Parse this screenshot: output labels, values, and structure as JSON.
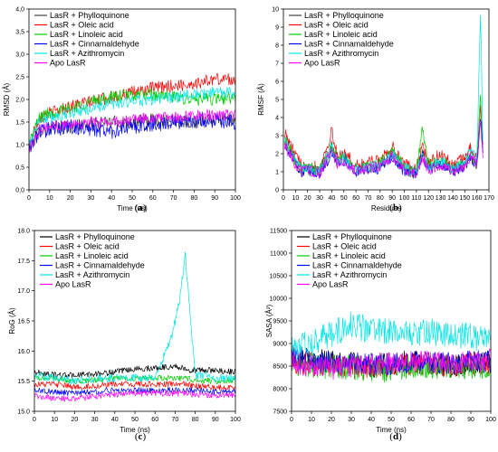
{
  "chart_data": [
    {
      "type": "line",
      "panel": "(a)",
      "panel_letter": "a",
      "xlabel": "Time (ns)",
      "ylabel": "RMSD (Å)",
      "xlim": [
        0,
        100
      ],
      "ylim": [
        0.0,
        4.0
      ],
      "xticks": [
        0,
        10,
        20,
        30,
        40,
        50,
        60,
        70,
        80,
        90,
        100
      ],
      "yticks": [
        0.0,
        0.5,
        1.0,
        1.5,
        2.0,
        2.5,
        3.0,
        3.5,
        4.0
      ],
      "ytick_labels": [
        "0,0",
        "0,5",
        "1,0",
        "1,5",
        "2,0",
        "2,5",
        "3,0",
        "3,5",
        "4,0"
      ],
      "legend_position": "top-left",
      "series": [
        {
          "name": "LasR + Phylloquinone",
          "color": "#444444",
          "x": [
            0,
            5,
            10,
            20,
            30,
            40,
            50,
            60,
            70,
            80,
            90,
            100
          ],
          "values": [
            0.9,
            1.3,
            1.35,
            1.4,
            1.45,
            1.5,
            1.5,
            1.55,
            1.55,
            1.5,
            1.55,
            1.55
          ],
          "noise": 0.15
        },
        {
          "name": "LasR + Oleic acid",
          "color": "#ff0000",
          "x": [
            0,
            5,
            10,
            20,
            30,
            40,
            50,
            60,
            70,
            80,
            90,
            100
          ],
          "values": [
            1.0,
            1.6,
            1.7,
            1.85,
            1.95,
            2.05,
            2.15,
            2.25,
            2.3,
            2.35,
            2.45,
            2.45
          ],
          "noise": 0.14
        },
        {
          "name": "LasR + Linoleic acid",
          "color": "#00cc00",
          "x": [
            0,
            5,
            10,
            20,
            30,
            40,
            50,
            60,
            70,
            80,
            90,
            100
          ],
          "values": [
            1.0,
            1.6,
            1.7,
            1.8,
            1.95,
            2.05,
            2.1,
            2.1,
            2.05,
            2.0,
            2.0,
            2.05
          ],
          "noise": 0.14
        },
        {
          "name": "LasR + Cinnamaldehyde",
          "color": "#0000ff",
          "x": [
            0,
            5,
            10,
            20,
            30,
            40,
            50,
            60,
            70,
            80,
            90,
            100
          ],
          "values": [
            0.9,
            1.3,
            1.35,
            1.4,
            1.35,
            1.3,
            1.4,
            1.45,
            1.5,
            1.55,
            1.55,
            1.5
          ],
          "noise": 0.18
        },
        {
          "name": "LasR + Azithromycin",
          "color": "#00e5e5",
          "x": [
            0,
            5,
            10,
            20,
            30,
            40,
            50,
            60,
            70,
            80,
            90,
            100
          ],
          "values": [
            1.0,
            1.55,
            1.6,
            1.7,
            1.8,
            1.9,
            1.95,
            2.0,
            2.05,
            2.1,
            2.15,
            2.15
          ],
          "noise": 0.13
        },
        {
          "name": "Apo LasR",
          "color": "#ff00ff",
          "x": [
            0,
            5,
            10,
            20,
            30,
            40,
            50,
            60,
            70,
            80,
            90,
            100
          ],
          "values": [
            0.9,
            1.35,
            1.4,
            1.45,
            1.5,
            1.5,
            1.55,
            1.6,
            1.6,
            1.65,
            1.65,
            1.65
          ],
          "noise": 0.12
        }
      ]
    },
    {
      "type": "line",
      "panel": "(b)",
      "panel_letter": "b",
      "xlabel": "Residues",
      "ylabel": "RMSF (Å)",
      "xlim": [
        0,
        170
      ],
      "ylim": [
        0,
        10
      ],
      "xticks": [
        0,
        10,
        20,
        30,
        40,
        50,
        60,
        70,
        80,
        90,
        100,
        110,
        120,
        130,
        140,
        150,
        160,
        170
      ],
      "yticks": [
        0,
        1,
        2,
        3,
        4,
        5,
        6,
        7,
        8,
        9,
        10
      ],
      "ytick_labels": [
        "0",
        "1",
        "2",
        "3",
        "4",
        "5",
        "6",
        "7",
        "8",
        "9",
        "10"
      ],
      "legend_position": "top-left",
      "series": [
        {
          "name": "LasR + Phylloquinone",
          "color": "#444444",
          "x": [
            1,
            5,
            10,
            15,
            20,
            30,
            40,
            45,
            50,
            60,
            70,
            80,
            90,
            100,
            110,
            115,
            120,
            130,
            140,
            150,
            155,
            160,
            163,
            165
          ],
          "values": [
            3.0,
            2.4,
            1.6,
            1.1,
            1.2,
            1.0,
            2.6,
            1.6,
            1.9,
            1.1,
            1.2,
            1.4,
            2.0,
            1.1,
            0.9,
            2.0,
            1.2,
            1.6,
            1.1,
            1.5,
            2.0,
            1.4,
            3.8,
            2.0
          ],
          "noise": 0.35
        },
        {
          "name": "LasR + Oleic acid",
          "color": "#ff0000",
          "x": [
            1,
            5,
            10,
            15,
            20,
            30,
            40,
            45,
            50,
            60,
            70,
            80,
            90,
            100,
            110,
            115,
            120,
            130,
            140,
            150,
            155,
            160,
            163,
            165
          ],
          "values": [
            3.2,
            2.6,
            1.9,
            1.3,
            1.5,
            1.2,
            3.2,
            1.8,
            2.1,
            1.3,
            1.5,
            1.6,
            2.4,
            1.4,
            1.2,
            2.4,
            1.4,
            2.0,
            1.3,
            1.8,
            2.4,
            1.7,
            4.5,
            2.2
          ],
          "noise": 0.35
        },
        {
          "name": "LasR + Linoleic acid",
          "color": "#00cc00",
          "x": [
            1,
            5,
            10,
            15,
            20,
            30,
            40,
            45,
            50,
            60,
            70,
            80,
            90,
            100,
            110,
            115,
            120,
            130,
            140,
            150,
            155,
            160,
            163,
            165
          ],
          "values": [
            2.8,
            2.3,
            1.6,
            1.1,
            1.2,
            1.0,
            2.4,
            1.5,
            1.8,
            1.1,
            1.3,
            1.4,
            2.2,
            1.2,
            1.0,
            3.4,
            1.3,
            1.6,
            1.1,
            1.4,
            2.0,
            1.5,
            5.0,
            2.2
          ],
          "noise": 0.35
        },
        {
          "name": "LasR + Cinnamaldehyde",
          "color": "#0000ff",
          "x": [
            1,
            5,
            10,
            15,
            20,
            30,
            40,
            45,
            50,
            60,
            70,
            80,
            90,
            100,
            110,
            115,
            120,
            130,
            140,
            150,
            155,
            160,
            163,
            165
          ],
          "values": [
            2.6,
            2.0,
            1.4,
            1.0,
            1.1,
            0.9,
            2.0,
            1.4,
            1.6,
            1.0,
            1.1,
            1.2,
            1.8,
            1.0,
            0.9,
            1.9,
            1.1,
            1.4,
            1.0,
            1.3,
            1.8,
            1.3,
            4.2,
            2.0
          ],
          "noise": 0.3
        },
        {
          "name": "LasR + Azithromycin",
          "color": "#00e5e5",
          "x": [
            1,
            5,
            10,
            15,
            20,
            30,
            40,
            45,
            50,
            60,
            70,
            80,
            90,
            100,
            110,
            115,
            120,
            130,
            140,
            150,
            155,
            160,
            163,
            165
          ],
          "values": [
            2.8,
            2.2,
            1.6,
            1.1,
            1.2,
            1.0,
            2.4,
            1.5,
            1.8,
            1.1,
            1.3,
            1.4,
            2.0,
            1.2,
            1.0,
            2.0,
            1.2,
            1.6,
            1.2,
            1.5,
            2.2,
            1.6,
            10.0,
            2.4
          ],
          "noise": 0.3
        },
        {
          "name": "Apo LasR",
          "color": "#ff00ff",
          "x": [
            1,
            5,
            10,
            15,
            20,
            30,
            40,
            45,
            50,
            60,
            70,
            80,
            90,
            100,
            110,
            115,
            120,
            130,
            140,
            150,
            155,
            160,
            163,
            165
          ],
          "values": [
            2.5,
            2.0,
            1.4,
            1.0,
            1.1,
            0.9,
            2.2,
            1.4,
            1.6,
            1.0,
            1.2,
            1.3,
            1.9,
            1.1,
            0.9,
            1.8,
            1.1,
            1.4,
            1.0,
            1.3,
            1.9,
            1.4,
            4.0,
            1.9
          ],
          "noise": 0.3
        }
      ]
    },
    {
      "type": "line",
      "panel": "(c)",
      "panel_letter": "c",
      "xlabel": "Time (ns)",
      "ylabel": "RoG (Å)",
      "xlim": [
        0,
        100
      ],
      "ylim": [
        15.0,
        18.0
      ],
      "xticks": [
        0,
        10,
        20,
        30,
        40,
        50,
        60,
        70,
        80,
        90,
        100
      ],
      "yticks": [
        15.0,
        15.5,
        16.0,
        16.5,
        17.0,
        17.5,
        18.0
      ],
      "ytick_labels": [
        "15.0",
        "15.5",
        "16.0",
        "16.5",
        "17.0",
        "17.5",
        "18.0"
      ],
      "legend_position": "top-left",
      "series": [
        {
          "name": "LasR + Phylloquinone",
          "color": "#000000",
          "x": [
            0,
            10,
            20,
            30,
            40,
            50,
            60,
            70,
            75,
            80,
            90,
            100
          ],
          "values": [
            15.65,
            15.6,
            15.6,
            15.62,
            15.65,
            15.7,
            15.72,
            15.75,
            15.7,
            15.68,
            15.68,
            15.65
          ],
          "noise": 0.05
        },
        {
          "name": "LasR + Oleic acid",
          "color": "#ff0000",
          "x": [
            0,
            10,
            20,
            30,
            40,
            50,
            60,
            70,
            75,
            80,
            90,
            100
          ],
          "values": [
            15.45,
            15.45,
            15.4,
            15.42,
            15.45,
            15.45,
            15.45,
            15.45,
            15.45,
            15.42,
            15.4,
            15.4
          ],
          "noise": 0.05
        },
        {
          "name": "LasR + Linoleic acid",
          "color": "#00cc00",
          "x": [
            0,
            10,
            20,
            30,
            40,
            50,
            60,
            70,
            75,
            80,
            90,
            100
          ],
          "values": [
            15.55,
            15.55,
            15.5,
            15.52,
            15.55,
            15.55,
            15.55,
            15.55,
            15.55,
            15.52,
            15.5,
            15.52
          ],
          "noise": 0.05
        },
        {
          "name": "LasR + Cinnamaldehyde",
          "color": "#0000ff",
          "x": [
            0,
            10,
            20,
            30,
            40,
            50,
            60,
            70,
            75,
            80,
            90,
            100
          ],
          "values": [
            15.35,
            15.32,
            15.3,
            15.32,
            15.35,
            15.35,
            15.35,
            15.35,
            15.35,
            15.35,
            15.32,
            15.32
          ],
          "noise": 0.05
        },
        {
          "name": "LasR + Azithromycin",
          "color": "#00e5e5",
          "x": [
            0,
            10,
            20,
            30,
            40,
            50,
            60,
            68,
            72,
            75,
            77,
            80,
            90,
            100
          ],
          "values": [
            15.6,
            15.55,
            15.5,
            15.55,
            15.55,
            15.55,
            15.55,
            16.2,
            16.8,
            17.6,
            16.8,
            15.6,
            15.55,
            15.55
          ],
          "noise": 0.07
        },
        {
          "name": "Apo LasR",
          "color": "#ff00ff",
          "x": [
            0,
            10,
            20,
            30,
            40,
            50,
            60,
            70,
            75,
            80,
            90,
            100
          ],
          "values": [
            15.25,
            15.22,
            15.2,
            15.25,
            15.28,
            15.3,
            15.3,
            15.3,
            15.3,
            15.28,
            15.27,
            15.27
          ],
          "noise": 0.05
        }
      ]
    },
    {
      "type": "line",
      "panel": "(d)",
      "panel_letter": "d",
      "xlabel": "Time (ns)",
      "ylabel": "SASA (Å²)",
      "xlim": [
        0,
        100
      ],
      "ylim": [
        7500,
        11500
      ],
      "xticks": [
        0,
        10,
        20,
        30,
        40,
        50,
        60,
        70,
        80,
        90,
        100
      ],
      "yticks": [
        7500,
        8000,
        8500,
        9000,
        9500,
        10000,
        10500,
        11000,
        11500
      ],
      "ytick_labels": [
        "7500",
        "8000",
        "8500",
        "9000",
        "9500",
        "10000",
        "10500",
        "11000",
        "11500"
      ],
      "legend_position": "top-left",
      "series": [
        {
          "name": "LasR + Phylloquinone",
          "color": "#000000",
          "x": [
            0,
            10,
            20,
            30,
            40,
            50,
            60,
            70,
            80,
            90,
            100
          ],
          "values": [
            8700,
            8650,
            8600,
            8550,
            8500,
            8550,
            8600,
            8550,
            8500,
            8550,
            8600
          ],
          "noise": 260
        },
        {
          "name": "LasR + Oleic acid",
          "color": "#ff0000",
          "x": [
            0,
            10,
            20,
            30,
            40,
            50,
            60,
            70,
            80,
            90,
            100
          ],
          "values": [
            8600,
            8550,
            8500,
            8450,
            8450,
            8500,
            8550,
            8550,
            8500,
            8550,
            8550
          ],
          "noise": 260
        },
        {
          "name": "LasR + Linoleic acid",
          "color": "#00cc00",
          "x": [
            0,
            10,
            20,
            30,
            40,
            50,
            60,
            70,
            80,
            90,
            100
          ],
          "values": [
            8600,
            8500,
            8500,
            8450,
            8450,
            8400,
            8500,
            8500,
            8450,
            8500,
            8500
          ],
          "noise": 280
        },
        {
          "name": "LasR + Cinnamaldehyde",
          "color": "#0000ff",
          "x": [
            0,
            10,
            20,
            30,
            40,
            50,
            60,
            70,
            80,
            90,
            100
          ],
          "values": [
            8700,
            8600,
            8600,
            8550,
            8550,
            8550,
            8600,
            8600,
            8550,
            8600,
            8600
          ],
          "noise": 250
        },
        {
          "name": "LasR + Azithromycin",
          "color": "#00e5e5",
          "x": [
            0,
            10,
            20,
            30,
            40,
            50,
            60,
            70,
            80,
            90,
            100
          ],
          "values": [
            8900,
            9000,
            9200,
            9400,
            9300,
            9250,
            9200,
            9250,
            9200,
            9150,
            9100
          ],
          "noise": 300
        },
        {
          "name": "Apo LasR",
          "color": "#ff00ff",
          "x": [
            0,
            10,
            20,
            30,
            40,
            50,
            60,
            70,
            80,
            90,
            100
          ],
          "values": [
            8600,
            8500,
            8450,
            8500,
            8550,
            8550,
            8600,
            8600,
            8550,
            8600,
            8650
          ],
          "noise": 250
        }
      ]
    }
  ]
}
